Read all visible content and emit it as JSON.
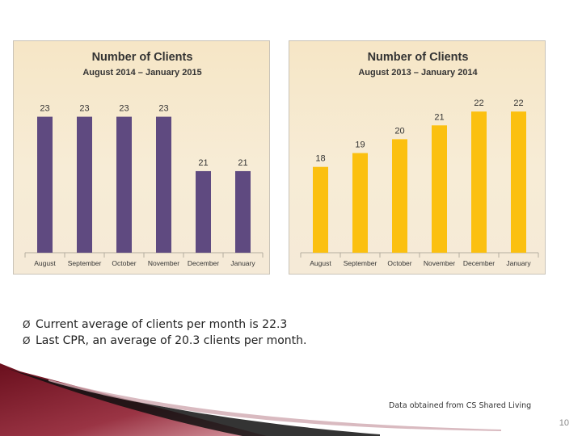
{
  "chart_data": [
    {
      "type": "bar",
      "title": "Number of Clients",
      "subtitle": "August 2014 – January 2015",
      "categories": [
        "August",
        "September",
        "October",
        "November",
        "December",
        "January"
      ],
      "values": [
        23,
        23,
        23,
        23,
        21,
        21
      ],
      "color": "#5f4a80",
      "ylim": [
        18,
        23.7
      ],
      "xlabel": "",
      "ylabel": "",
      "grid": false
    },
    {
      "type": "bar",
      "title": "Number of Clients",
      "subtitle": "August 2013 – January 2014",
      "categories": [
        "August",
        "September",
        "October",
        "November",
        "December",
        "January"
      ],
      "values": [
        18,
        19,
        20,
        21,
        22,
        22
      ],
      "color": "#fbc010",
      "ylim": [
        11.8,
        23
      ],
      "xlabel": "",
      "ylabel": "",
      "grid": false
    }
  ],
  "bullets": [
    "Current average of clients per month is 22.3",
    "Last CPR, an average of 20.3 clients per month."
  ],
  "bullet_marker": "Ø",
  "source_note": "Data obtained from CS Shared Living",
  "page_number": "10",
  "colors": {
    "swoosh_dark": "#7a1424",
    "swoosh_light": "#c06a78",
    "axis": "#b5ad9f"
  }
}
